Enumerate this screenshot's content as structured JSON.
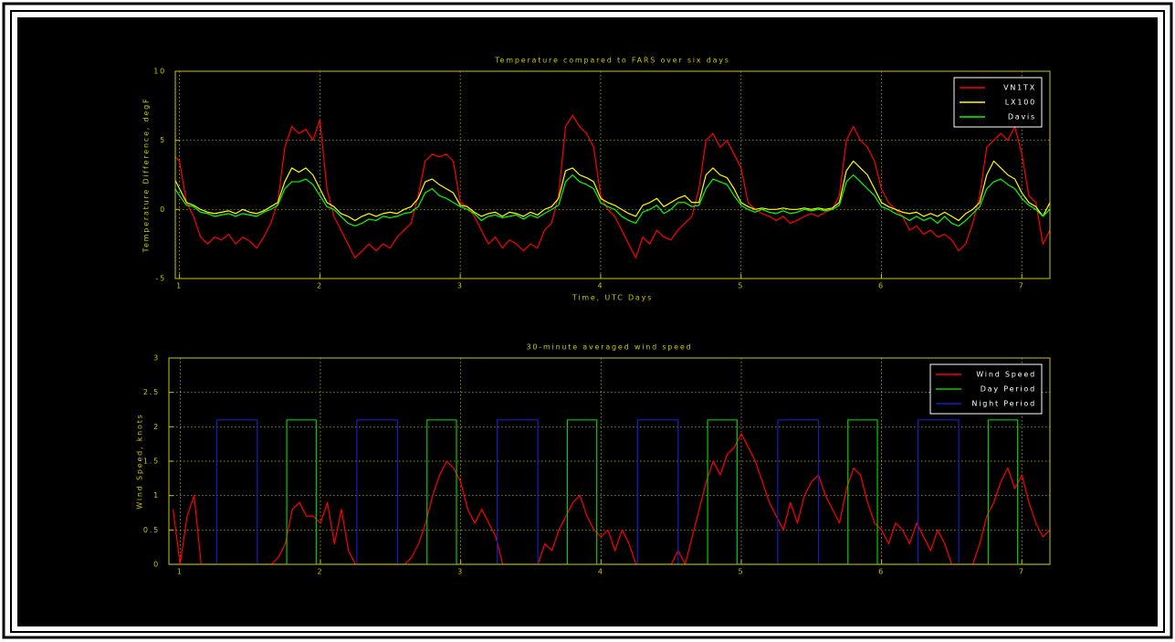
{
  "chart_data": [
    {
      "type": "line",
      "title": "Temperature compared to FARS over six days",
      "xlabel": "Time, UTC Days",
      "ylabel": "Temperature Difference, degF",
      "xlim": [
        0.97,
        7.2
      ],
      "xticks": [
        1,
        2,
        3,
        4,
        5,
        6,
        7
      ],
      "ylim": [
        -5,
        10
      ],
      "yticks": [
        -5,
        0,
        5,
        10
      ],
      "grid": true,
      "legend": "upper right",
      "x": [
        0.95,
        1,
        1.05,
        1.1,
        1.15,
        1.2,
        1.25,
        1.3,
        1.35,
        1.4,
        1.45,
        1.5,
        1.55,
        1.6,
        1.65,
        1.7,
        1.75,
        1.8,
        1.85,
        1.9,
        1.95,
        2,
        2.05,
        2.1,
        2.15,
        2.2,
        2.25,
        2.3,
        2.35,
        2.4,
        2.45,
        2.5,
        2.55,
        2.6,
        2.65,
        2.7,
        2.75,
        2.8,
        2.85,
        2.9,
        2.95,
        3,
        3.05,
        3.1,
        3.15,
        3.2,
        3.25,
        3.3,
        3.35,
        3.4,
        3.45,
        3.5,
        3.55,
        3.6,
        3.65,
        3.7,
        3.75,
        3.8,
        3.85,
        3.9,
        3.95,
        4,
        4.05,
        4.1,
        4.15,
        4.2,
        4.25,
        4.3,
        4.35,
        4.4,
        4.45,
        4.5,
        4.55,
        4.6,
        4.65,
        4.7,
        4.75,
        4.8,
        4.85,
        4.9,
        4.95,
        5,
        5.05,
        5.1,
        5.15,
        5.2,
        5.25,
        5.3,
        5.35,
        5.4,
        5.45,
        5.5,
        5.55,
        5.6,
        5.65,
        5.7,
        5.75,
        5.8,
        5.85,
        5.9,
        5.95,
        6,
        6.05,
        6.1,
        6.15,
        6.2,
        6.25,
        6.3,
        6.35,
        6.4,
        6.45,
        6.5,
        6.55,
        6.6,
        6.65,
        6.7,
        6.75,
        6.8,
        6.85,
        6.9,
        6.95,
        7,
        7.05,
        7.1,
        7.15,
        7.2
      ],
      "series": [
        {
          "name": "VN1TX",
          "color": "#ff0000",
          "values": [
            4,
            3.5,
            0.5,
            -0.5,
            -2,
            -2.5,
            -2,
            -2.2,
            -1.8,
            -2.5,
            -2,
            -2.3,
            -2.8,
            -2,
            -1,
            0.5,
            4.5,
            6,
            5.5,
            5.8,
            5,
            6.5,
            1.5,
            -0.5,
            -1.5,
            -2.5,
            -3.5,
            -3,
            -2.5,
            -3,
            -2.5,
            -2.8,
            -2,
            -1.5,
            -1,
            1,
            3.5,
            4,
            3.8,
            4,
            3.5,
            0.5,
            0.2,
            -0.5,
            -1.5,
            -2.5,
            -2,
            -2.8,
            -2.2,
            -2.5,
            -3,
            -2.5,
            -2.8,
            -1.5,
            -1,
            1,
            6,
            6.8,
            6,
            5.5,
            4.5,
            1,
            0,
            -0.5,
            -1.5,
            -2.5,
            -3.5,
            -2,
            -2.5,
            -1.5,
            -2,
            -2.2,
            -1.5,
            -1,
            -0.5,
            1.5,
            5,
            5.5,
            4.5,
            5,
            4,
            3,
            0.5,
            0,
            -0.3,
            -0.5,
            -0.8,
            -0.5,
            -1,
            -0.8,
            -0.5,
            -0.3,
            -0.5,
            -0.2,
            0,
            1,
            5,
            6,
            5,
            4.5,
            3.5,
            1.5,
            0.5,
            0,
            -0.5,
            -1.5,
            -1.2,
            -1.8,
            -1.5,
            -2,
            -1.8,
            -2.2,
            -3,
            -2.5,
            -1,
            1,
            4.5,
            5,
            5.5,
            5,
            6,
            4,
            1,
            0.5,
            -2.5,
            -1.5
          ]
        },
        {
          "name": "LX100",
          "color": "#ffff00",
          "values": [
            2.5,
            1.5,
            0.5,
            0.3,
            0,
            -0.2,
            -0.3,
            -0.2,
            -0.1,
            -0.3,
            0,
            -0.2,
            -0.3,
            -0.1,
            0.2,
            0.5,
            2,
            3,
            2.7,
            3,
            2.5,
            1.5,
            0.5,
            0.2,
            -0.3,
            -0.5,
            -0.8,
            -0.5,
            -0.3,
            -0.5,
            -0.3,
            -0.2,
            -0.3,
            0,
            0.2,
            0.8,
            2,
            2.2,
            1.8,
            1.5,
            1.2,
            0.3,
            0.2,
            -0.2,
            -0.5,
            -0.3,
            -0.2,
            -0.5,
            -0.2,
            -0.3,
            -0.5,
            -0.2,
            -0.4,
            0,
            0.2,
            0.8,
            2.8,
            3,
            2.5,
            2.3,
            2,
            0.8,
            0.5,
            0.3,
            0,
            -0.3,
            -0.5,
            0.3,
            0.5,
            0.8,
            0.2,
            0.5,
            0.8,
            1,
            0.5,
            0.5,
            2.5,
            3,
            2.5,
            2.3,
            1.5,
            0.5,
            0.2,
            0,
            0.1,
            0,
            0,
            0.1,
            0,
            0,
            0.1,
            0,
            0.1,
            0,
            0.1,
            0.5,
            2.8,
            3.5,
            3,
            2.5,
            1.5,
            0.5,
            0.2,
            0,
            -0.2,
            -0.3,
            -0.2,
            -0.5,
            -0.3,
            -0.5,
            -0.2,
            -0.5,
            -0.8,
            -0.3,
            0,
            0.5,
            2.5,
            3.5,
            3,
            2.5,
            2.2,
            1.2,
            0.5,
            0.2,
            -0.5,
            0.5
          ]
        },
        {
          "name": "Davis",
          "color": "#00ff00",
          "values": [
            1.8,
            1,
            0.3,
            0.2,
            -0.2,
            -0.3,
            -0.5,
            -0.4,
            -0.3,
            -0.5,
            -0.3,
            -0.4,
            -0.5,
            -0.2,
            0,
            0.3,
            1.5,
            2,
            2,
            2.2,
            1.8,
            1,
            0.2,
            0,
            -0.5,
            -1,
            -1.2,
            -1,
            -0.7,
            -0.8,
            -0.5,
            -0.6,
            -0.5,
            -0.3,
            -0.2,
            0.2,
            1.2,
            1.5,
            1,
            0.8,
            0.5,
            0.2,
            0,
            -0.3,
            -0.8,
            -0.5,
            -0.4,
            -0.6,
            -0.5,
            -0.4,
            -0.7,
            -0.4,
            -0.6,
            -0.3,
            0,
            0.3,
            2,
            2.5,
            2,
            1.8,
            1.5,
            0.5,
            0.2,
            0,
            -0.5,
            -0.8,
            -1,
            -0.2,
            0,
            0.3,
            -0.3,
            0,
            0.5,
            0.5,
            0.2,
            0.3,
            1.5,
            2.2,
            2,
            1.8,
            1,
            0.3,
            0,
            -0.2,
            0,
            -0.2,
            -0.3,
            -0.1,
            -0.3,
            -0.2,
            0,
            -0.1,
            0,
            -0.1,
            0,
            0.3,
            2,
            2.5,
            2,
            1.5,
            1,
            0.2,
            0,
            -0.3,
            -0.5,
            -0.8,
            -0.5,
            -0.8,
            -0.6,
            -1,
            -0.5,
            -1,
            -1.2,
            -0.8,
            -0.3,
            0.2,
            1.5,
            2,
            2.2,
            1.8,
            1.5,
            0.8,
            0.3,
            0,
            -0.5,
            0
          ]
        }
      ]
    },
    {
      "type": "line",
      "title": "30-minute averaged wind speed",
      "ylabel": "Wind Speed, knots",
      "xlim": [
        0.92,
        7.2
      ],
      "xticks": [
        1,
        2,
        3,
        4,
        5,
        6,
        7
      ],
      "ylim": [
        0,
        3
      ],
      "yticks": [
        0,
        0.5,
        1,
        1.5,
        2,
        2.5,
        3
      ],
      "grid": true,
      "legend": "upper right",
      "series": [
        {
          "name": "Wind Speed",
          "color": "#ff0000",
          "x": [
            0.95,
            1,
            1.05,
            1.1,
            1.15,
            1.2,
            1.25,
            1.3,
            1.35,
            1.4,
            1.45,
            1.5,
            1.55,
            1.6,
            1.65,
            1.7,
            1.75,
            1.8,
            1.85,
            1.9,
            1.95,
            2,
            2.05,
            2.1,
            2.15,
            2.2,
            2.25,
            2.3,
            2.35,
            2.4,
            2.45,
            2.5,
            2.55,
            2.6,
            2.65,
            2.7,
            2.75,
            2.8,
            2.85,
            2.9,
            2.95,
            3,
            3.05,
            3.1,
            3.15,
            3.2,
            3.25,
            3.3,
            3.35,
            3.4,
            3.45,
            3.5,
            3.55,
            3.6,
            3.65,
            3.7,
            3.75,
            3.8,
            3.85,
            3.9,
            3.95,
            4,
            4.05,
            4.1,
            4.15,
            4.2,
            4.25,
            4.3,
            4.35,
            4.4,
            4.45,
            4.5,
            4.55,
            4.6,
            4.65,
            4.7,
            4.75,
            4.8,
            4.85,
            4.9,
            4.95,
            5,
            5.05,
            5.1,
            5.15,
            5.2,
            5.25,
            5.3,
            5.35,
            5.4,
            5.45,
            5.5,
            5.55,
            5.6,
            5.65,
            5.7,
            5.75,
            5.8,
            5.85,
            5.9,
            5.95,
            6,
            6.05,
            6.1,
            6.15,
            6.2,
            6.25,
            6.3,
            6.35,
            6.4,
            6.45,
            6.5,
            6.55,
            6.6,
            6.65,
            6.7,
            6.75,
            6.8,
            6.85,
            6.9,
            6.95,
            7,
            7.05,
            7.1,
            7.15,
            7.2
          ],
          "values": [
            0.8,
            0,
            0.7,
            1,
            0,
            0,
            0,
            0,
            0,
            0,
            0,
            0,
            0,
            0,
            0,
            0.1,
            0.3,
            0.8,
            0.9,
            0.7,
            0.7,
            0.6,
            0.9,
            0.3,
            0.8,
            0.2,
            0,
            0,
            0,
            0,
            0,
            0,
            0,
            0,
            0.1,
            0.3,
            0.6,
            1,
            1.3,
            1.5,
            1.4,
            1.2,
            0.8,
            0.6,
            0.8,
            0.6,
            0.4,
            0,
            0,
            0,
            0,
            0,
            0,
            0.3,
            0.2,
            0.5,
            0.7,
            0.9,
            1,
            0.7,
            0.5,
            0.4,
            0.5,
            0.2,
            0.5,
            0.3,
            0,
            0,
            0,
            0,
            0,
            0,
            0.2,
            0,
            0.4,
            0.8,
            1.2,
            1.5,
            1.3,
            1.6,
            1.7,
            1.9,
            1.7,
            1.5,
            1.2,
            0.9,
            0.7,
            0.5,
            0.9,
            0.6,
            1,
            1.2,
            1.3,
            1,
            0.8,
            0.6,
            1.1,
            1.4,
            1.3,
            0.9,
            0.6,
            0.5,
            0.3,
            0.6,
            0.5,
            0.3,
            0.6,
            0.4,
            0.2,
            0.5,
            0.3,
            0,
            0,
            0,
            0,
            0.3,
            0.7,
            0.9,
            1.2,
            1.4,
            1.1,
            1.3,
            0.9,
            0.6,
            0.4,
            0.5
          ]
        },
        {
          "name": "Day Period",
          "color": "#00cc00",
          "x": [
            0.92,
            1.76,
            1.76,
            1.97,
            1.97,
            2.76,
            2.76,
            2.97,
            2.97,
            3.76,
            3.76,
            3.97,
            3.97,
            4.76,
            4.76,
            4.97,
            4.97,
            5.76,
            5.76,
            5.97,
            5.97,
            6.76,
            6.76,
            6.97,
            6.97,
            7.2
          ],
          "values": [
            0,
            0,
            2.1,
            2.1,
            0,
            0,
            2.1,
            2.1,
            0,
            0,
            2.1,
            2.1,
            0,
            0,
            2.1,
            2.1,
            0,
            0,
            2.1,
            2.1,
            0,
            0,
            2.1,
            2.1,
            0,
            0
          ]
        },
        {
          "name": "Night Period",
          "color": "#1a1acc",
          "x": [
            0.92,
            1.26,
            1.26,
            1.55,
            1.55,
            2.26,
            2.26,
            2.55,
            2.55,
            3.26,
            3.26,
            3.55,
            3.55,
            4.26,
            4.26,
            4.55,
            4.55,
            5.26,
            5.26,
            5.55,
            5.55,
            6.26,
            6.26,
            6.55,
            6.55,
            7.2
          ],
          "values": [
            0,
            0,
            2.1,
            2.1,
            0,
            0,
            2.1,
            2.1,
            0,
            0,
            2.1,
            2.1,
            0,
            0,
            2.1,
            2.1,
            0,
            0,
            2.1,
            2.1,
            0,
            0,
            2.1,
            2.1,
            0,
            0
          ]
        }
      ]
    }
  ]
}
